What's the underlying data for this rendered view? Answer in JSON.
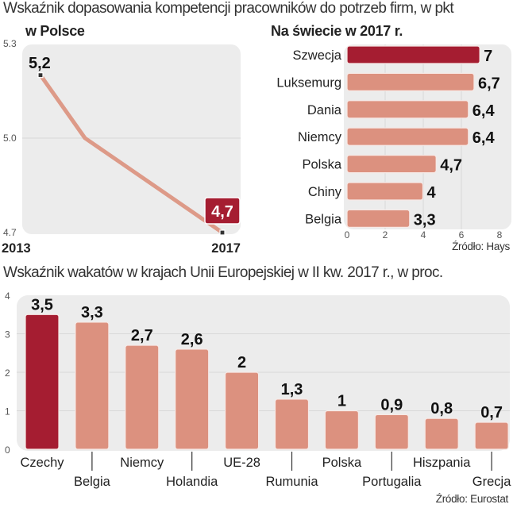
{
  "header": {
    "title_top": "Wskaźnik dopasowania kompetencji pracowników do potrzeb firm, w pkt",
    "title_bottom": "Wskaźnik wakatów w krajach Unii Europejskiej w II kw. 2017 r., w proc."
  },
  "colors": {
    "highlight": "#a51d31",
    "bar": "#dc917f",
    "line": "#dd9a88",
    "panel_bg": "#ececec",
    "grid": "#d9d9d9"
  },
  "chart_data": [
    {
      "type": "line",
      "title": "w Polsce",
      "x": [
        "2013",
        "2014",
        "2017"
      ],
      "x_tick_labels": [
        "2013",
        "2017"
      ],
      "values": [
        5.2,
        5.0,
        4.7
      ],
      "point_labels": [
        "5,2",
        "",
        "4,7"
      ],
      "highlight_last": true,
      "ylim": [
        4.7,
        5.3
      ],
      "y_ticks": [
        "4.7",
        "5.0",
        "5.3"
      ],
      "grid": true,
      "xlabel": "",
      "ylabel": ""
    },
    {
      "type": "bar",
      "orientation": "horizontal",
      "title": "Na świecie w 2017 r.",
      "categories": [
        "Szwecja",
        "Luksemurg",
        "Dania",
        "Niemcy",
        "Polska",
        "Chiny",
        "Belgia"
      ],
      "values": [
        7,
        6.7,
        6.4,
        6.4,
        4.7,
        4,
        3.3
      ],
      "value_labels": [
        "7",
        "6,7",
        "6,4",
        "6,4",
        "4,7",
        "4",
        "3,3"
      ],
      "highlight_index": 0,
      "xlim": [
        0,
        8
      ],
      "x_ticks": [
        "0",
        "2",
        "4",
        "6",
        "8"
      ],
      "grid": true,
      "source": "Źródło: Hays"
    },
    {
      "type": "bar",
      "orientation": "vertical",
      "title": "Wskaźnik wakatów w krajach Unii Europejskiej w II kw. 2017 r., w proc.",
      "categories": [
        "Czechy",
        "Belgia",
        "Niemcy",
        "Holandia",
        "UE-28",
        "Rumunia",
        "Polska",
        "Portugalia",
        "Hiszpania",
        "Grecja"
      ],
      "values": [
        3.5,
        3.3,
        2.7,
        2.6,
        2,
        1.3,
        1,
        0.9,
        0.8,
        0.7
      ],
      "value_labels": [
        "3,5",
        "3,3",
        "2,7",
        "2,6",
        "2",
        "1,3",
        "1",
        "0,9",
        "0,8",
        "0,7"
      ],
      "highlight_index": 0,
      "ylim": [
        0,
        4
      ],
      "y_ticks": [
        "0",
        "1",
        "2",
        "3",
        "4"
      ],
      "grid": true,
      "source": "Źródło: Eurostat"
    }
  ]
}
